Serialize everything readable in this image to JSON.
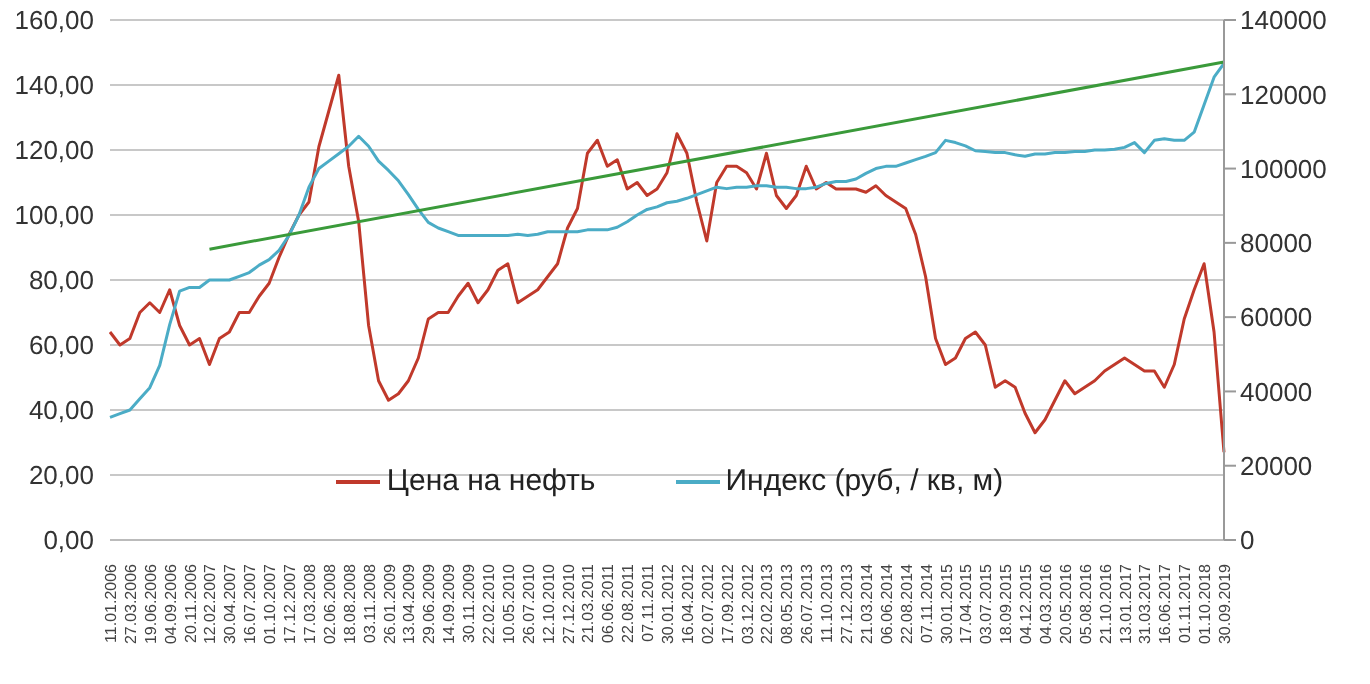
{
  "chart_data": {
    "type": "line",
    "categories": [
      "11.01.2006",
      null,
      "27.03.2006",
      null,
      "19.06.2006",
      null,
      "04.09.2006",
      null,
      "20.11.2006",
      null,
      "12.02.2007",
      null,
      "30.04.2007",
      null,
      "16.07.2007",
      null,
      "01.10.2007",
      null,
      "17.12.2007",
      null,
      "17.03.2008",
      null,
      "02.06.2008",
      null,
      "18.08.2008",
      null,
      "03.11.2008",
      null,
      "26.01.2009",
      null,
      "13.04.2009",
      null,
      "29.06.2009",
      null,
      "14.09.2009",
      null,
      "30.11.2009",
      null,
      "22.02.2010",
      null,
      "10.05.2010",
      null,
      "26.07.2010",
      null,
      "12.10.2010",
      null,
      "27.12.2010",
      null,
      "21.03.2011",
      null,
      "06.06.2011",
      null,
      "22.08.2011",
      null,
      "07.11.2011",
      null,
      "30.01.2012",
      null,
      "16.04.2012",
      null,
      "02.07.2012",
      null,
      "17.09.2012",
      null,
      "03.12.2012",
      null,
      "22.02.2013",
      null,
      "08.05.2013",
      null,
      "26.07.2013",
      null,
      "11.10.2013",
      null,
      "27.12.2013",
      null,
      "21.03.2014",
      null,
      "06.06.2014",
      null,
      "22.08.2014",
      null,
      "07.11.2014",
      null,
      "30.01.2015",
      null,
      "17.04.2015",
      null,
      "03.07.2015",
      null,
      "18.09.2015",
      null,
      "04.12.2015",
      null,
      "04.03.2016",
      null,
      "20.05.2016",
      null,
      "05.08.2016",
      null,
      "21.10.2016",
      null,
      "13.01.2017",
      null,
      "31.03.2017",
      null,
      "16.06.2017",
      null,
      "01.11.2017",
      null,
      "01.10.2018",
      null,
      "30.09.2019"
    ],
    "series": [
      {
        "name": "Цена на нефть",
        "color": "#c0392b",
        "values": [
          64,
          60,
          62,
          70,
          73,
          70,
          77,
          66,
          60,
          62,
          54,
          62,
          64,
          70,
          70,
          75,
          79,
          87,
          94,
          100,
          104,
          121,
          132,
          143,
          115,
          98,
          66,
          49,
          43,
          45,
          49,
          56,
          68,
          70,
          70,
          75,
          79,
          73,
          77,
          83,
          85,
          73,
          75,
          77,
          81,
          85,
          96,
          102,
          119,
          123,
          115,
          117,
          108,
          110,
          106,
          108,
          113,
          125,
          119,
          104,
          92,
          110,
          115,
          115,
          113,
          108,
          119,
          106,
          102,
          106,
          115,
          108,
          110,
          108,
          108,
          108,
          107,
          109,
          106,
          104,
          102,
          94,
          81,
          62,
          54,
          56,
          62,
          64,
          60,
          47,
          49,
          47,
          39,
          33,
          37,
          43,
          49,
          45,
          47,
          49,
          52,
          54,
          56,
          54,
          52,
          52,
          47,
          54,
          68,
          77,
          85,
          64,
          27
        ]
      },
      {
        "name": "Индекс (руб, / кв, м)",
        "color": "#4bacc6",
        "axis": "y2",
        "values": [
          33000,
          34000,
          35000,
          38000,
          41000,
          47000,
          58000,
          67000,
          68000,
          68000,
          70000,
          70000,
          70000,
          71000,
          72000,
          74000,
          75500,
          78000,
          82000,
          87500,
          95000,
          100000,
          102000,
          104000,
          106000,
          108700,
          106000,
          102000,
          99500,
          96700,
          93000,
          89000,
          85500,
          84000,
          83000,
          82000,
          82000,
          82000,
          82000,
          82000,
          82000,
          82300,
          82000,
          82300,
          83000,
          83000,
          83000,
          83000,
          83500,
          83500,
          83500,
          84200,
          85700,
          87500,
          89000,
          89700,
          90800,
          91200,
          92000,
          93000,
          94000,
          95000,
          94600,
          95000,
          95000,
          95400,
          95400,
          95000,
          95000,
          94600,
          94600,
          95000,
          96000,
          96500,
          96500,
          97200,
          98700,
          100000,
          100600,
          100600,
          101500,
          102400,
          103300,
          104300,
          107600,
          107000,
          106100,
          104800,
          104600,
          104300,
          104300,
          103700,
          103300,
          103900,
          103900,
          104300,
          104300,
          104600,
          104600,
          105000,
          105000,
          105200,
          105700,
          107000,
          104300,
          107600,
          108000,
          107600,
          107600,
          109800,
          117200,
          124600,
          128300
        ]
      },
      {
        "type": "line",
        "color": "#3a9a3a",
        "axis": "y2",
        "x": [
          "12.02.2007",
          "30.09.2019"
        ],
        "values": [
          78300,
          128700
        ]
      }
    ],
    "ylim": [
      0,
      160
    ],
    "yticks": [
      {
        "value": 0,
        "label": "0,00"
      },
      {
        "value": 20,
        "label": "20,00"
      },
      {
        "value": 40,
        "label": "40,00"
      },
      {
        "value": 60,
        "label": "60,00"
      },
      {
        "value": 80,
        "label": "80,00"
      },
      {
        "value": 100,
        "label": "100,00"
      },
      {
        "value": 120,
        "label": "120,00"
      },
      {
        "value": 140,
        "label": "140,00"
      },
      {
        "value": 160,
        "label": "160,00"
      }
    ],
    "y2lim": [
      0,
      140000
    ],
    "y2ticks": [
      0,
      20000,
      40000,
      60000,
      80000,
      100000,
      120000,
      140000
    ],
    "grid": "y",
    "legend": "bottom",
    "marker": "none",
    "line_style": "solid"
  }
}
